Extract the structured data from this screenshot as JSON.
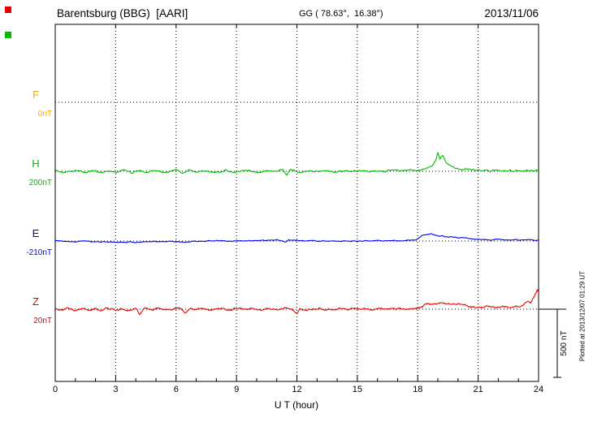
{
  "header": {
    "station": "Barentsburg (BBG)  [AARI]",
    "coords": "GG ( 78.63°,  16.38°)",
    "date": "2013/11/06"
  },
  "axis": {
    "x_label": "U T (hour)",
    "x_ticks": [
      "0",
      "3",
      "6",
      "9",
      "12",
      "15",
      "18",
      "21",
      "24"
    ],
    "x_range_hours": [
      0,
      24
    ],
    "major_tick_step_hours": 3
  },
  "scale_bar": {
    "label": "500 nT",
    "value_nT": 500
  },
  "footer_note": "Plotted at 2013/12/07 01:29 UT",
  "components": [
    {
      "id": "F",
      "label": "F",
      "baseline_label": "0nT",
      "color": "#ffa500",
      "baseline_nT": 0,
      "visible": false
    },
    {
      "id": "H",
      "label": "H",
      "baseline_label": "200nT",
      "color": "#00bb00",
      "baseline_nT": 200,
      "visible": true
    },
    {
      "id": "E",
      "label": "E",
      "baseline_label": "-210nT",
      "color": "#0000ee",
      "baseline_nT": -210,
      "visible": true
    },
    {
      "id": "Z",
      "label": "Z",
      "baseline_label": "20nT",
      "color": "#e80000",
      "baseline_nT": 20,
      "visible": true
    }
  ],
  "chart_data": {
    "type": "line",
    "title": "Barentsburg (BBG) magnetogram, 2013/11/06",
    "x_unit": "hour",
    "x_range": [
      0,
      24
    ],
    "grid": "dotted vertical every 3 h, dotted horizontal baseline per component",
    "scale_nT_per_division": 500,
    "series": [
      {
        "name": "F",
        "color": "#ffa500",
        "baseline_nT": 0,
        "noise_nT": 0,
        "anchors_hour_nT": []
      },
      {
        "name": "H",
        "color": "#00bb00",
        "baseline_nT": 200,
        "noise_nT": 9,
        "anchors_hour_nT": [
          [
            0,
            5
          ],
          [
            0.5,
            -5
          ],
          [
            1,
            4
          ],
          [
            1.5,
            -6
          ],
          [
            2,
            6
          ],
          [
            2.3,
            -16
          ],
          [
            2.6,
            5
          ],
          [
            3,
            -5
          ],
          [
            3.5,
            8
          ],
          [
            3.8,
            -14
          ],
          [
            4,
            6
          ],
          [
            4.5,
            -6
          ],
          [
            5,
            5
          ],
          [
            5.5,
            -8
          ],
          [
            6,
            10
          ],
          [
            6.3,
            -12
          ],
          [
            6.6,
            6
          ],
          [
            7,
            -5
          ],
          [
            7.5,
            6
          ],
          [
            8,
            -6
          ],
          [
            8.5,
            5
          ],
          [
            9,
            -5
          ],
          [
            9.5,
            8
          ],
          [
            10,
            -5
          ],
          [
            10.5,
            5
          ],
          [
            11,
            -6
          ],
          [
            11.3,
            14
          ],
          [
            11.5,
            -28
          ],
          [
            11.7,
            18
          ],
          [
            12,
            -10
          ],
          [
            12.5,
            6
          ],
          [
            13,
            -4
          ],
          [
            13.5,
            4
          ],
          [
            14,
            -4
          ],
          [
            15,
            4
          ],
          [
            16,
            -4
          ],
          [
            17,
            5
          ],
          [
            17.6,
            14
          ],
          [
            18,
            6
          ],
          [
            18.4,
            18
          ],
          [
            18.7,
            40
          ],
          [
            18.9,
            80
          ],
          [
            19,
            140
          ],
          [
            19.1,
            95
          ],
          [
            19.25,
            115
          ],
          [
            19.4,
            60
          ],
          [
            19.7,
            35
          ],
          [
            20,
            18
          ],
          [
            20.5,
            10
          ],
          [
            21,
            6
          ],
          [
            21.5,
            3
          ],
          [
            22,
            4
          ],
          [
            22.5,
            2
          ],
          [
            23,
            4
          ],
          [
            23.5,
            3
          ],
          [
            24,
            8
          ]
        ]
      },
      {
        "name": "E",
        "color": "#0000ee",
        "baseline_nT": -210,
        "noise_nT": 5,
        "anchors_hour_nT": [
          [
            0,
            3
          ],
          [
            0.5,
            -2
          ],
          [
            1,
            -4
          ],
          [
            1.5,
            -2
          ],
          [
            2,
            -6
          ],
          [
            2.5,
            -8
          ],
          [
            3,
            -10
          ],
          [
            3.5,
            -8
          ],
          [
            4,
            -9
          ],
          [
            4.5,
            -7
          ],
          [
            5,
            -6
          ],
          [
            5.5,
            -4
          ],
          [
            6,
            -3
          ],
          [
            6.5,
            -5
          ],
          [
            7,
            -2
          ],
          [
            7.5,
            0
          ],
          [
            8,
            2
          ],
          [
            8.5,
            0
          ],
          [
            9,
            1
          ],
          [
            9.5,
            3
          ],
          [
            10,
            5
          ],
          [
            10.5,
            7
          ],
          [
            11,
            8
          ],
          [
            11.4,
            -8
          ],
          [
            11.6,
            6
          ],
          [
            12,
            3
          ],
          [
            12.5,
            1
          ],
          [
            13,
            0
          ],
          [
            13.5,
            -2
          ],
          [
            14,
            -3
          ],
          [
            14.5,
            -1
          ],
          [
            15,
            0
          ],
          [
            15.5,
            2
          ],
          [
            16,
            3
          ],
          [
            16.5,
            2
          ],
          [
            17,
            3
          ],
          [
            17.5,
            4
          ],
          [
            17.9,
            8
          ],
          [
            18.1,
            30
          ],
          [
            18.4,
            46
          ],
          [
            18.7,
            52
          ],
          [
            19,
            40
          ],
          [
            19.3,
            34
          ],
          [
            19.6,
            30
          ],
          [
            20,
            26
          ],
          [
            20.4,
            20
          ],
          [
            20.8,
            15
          ],
          [
            21.2,
            12
          ],
          [
            21.6,
            9
          ],
          [
            22,
            12
          ],
          [
            22.4,
            8
          ],
          [
            22.8,
            10
          ],
          [
            23.2,
            6
          ],
          [
            23.6,
            8
          ],
          [
            24,
            6
          ]
        ]
      },
      {
        "name": "Z",
        "color": "#e80000",
        "baseline_nT": 20,
        "noise_nT": 10,
        "anchors_hour_nT": [
          [
            0,
            2
          ],
          [
            0.3,
            -10
          ],
          [
            0.6,
            8
          ],
          [
            1,
            -6
          ],
          [
            1.3,
            10
          ],
          [
            1.6,
            -8
          ],
          [
            2,
            6
          ],
          [
            2.3,
            -12
          ],
          [
            2.6,
            8
          ],
          [
            3,
            -6
          ],
          [
            3.3,
            8
          ],
          [
            3.6,
            -10
          ],
          [
            4,
            12
          ],
          [
            4.2,
            -35
          ],
          [
            4.4,
            10
          ],
          [
            4.8,
            -8
          ],
          [
            5.2,
            6
          ],
          [
            5.6,
            -8
          ],
          [
            6,
            8
          ],
          [
            6.2,
            14
          ],
          [
            6.45,
            -30
          ],
          [
            6.7,
            8
          ],
          [
            7,
            -6
          ],
          [
            7.4,
            6
          ],
          [
            7.8,
            -8
          ],
          [
            8.2,
            6
          ],
          [
            8.6,
            -8
          ],
          [
            9,
            6
          ],
          [
            9.4,
            -6
          ],
          [
            9.8,
            6
          ],
          [
            10.2,
            -8
          ],
          [
            10.6,
            6
          ],
          [
            11,
            -8
          ],
          [
            11.4,
            6
          ],
          [
            11.8,
            -8
          ],
          [
            12,
            -35
          ],
          [
            12.15,
            6
          ],
          [
            12.5,
            -6
          ],
          [
            13,
            4
          ],
          [
            13.5,
            -4
          ],
          [
            14,
            4
          ],
          [
            14.5,
            -3
          ],
          [
            15,
            3
          ],
          [
            15.5,
            -3
          ],
          [
            16,
            3
          ],
          [
            16.5,
            -4
          ],
          [
            17,
            4
          ],
          [
            17.5,
            -3
          ],
          [
            18,
            6
          ],
          [
            18.3,
            26
          ],
          [
            18.55,
            46
          ],
          [
            18.8,
            34
          ],
          [
            19.1,
            50
          ],
          [
            19.4,
            42
          ],
          [
            19.7,
            34
          ],
          [
            20,
            40
          ],
          [
            20.3,
            30
          ],
          [
            20.6,
            22
          ],
          [
            21,
            16
          ],
          [
            21.4,
            22
          ],
          [
            21.8,
            14
          ],
          [
            22.2,
            18
          ],
          [
            22.6,
            12
          ],
          [
            23,
            22
          ],
          [
            23.2,
            30
          ],
          [
            23.45,
            55
          ],
          [
            23.6,
            40
          ],
          [
            23.8,
            95
          ],
          [
            23.95,
            135
          ],
          [
            24,
            115
          ]
        ]
      }
    ]
  }
}
